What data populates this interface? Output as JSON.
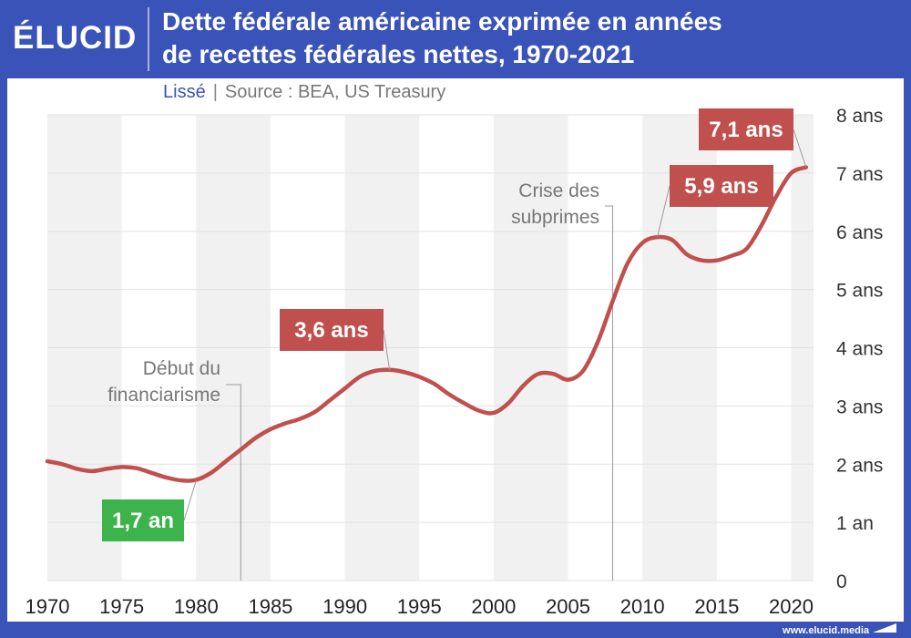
{
  "brand": {
    "logo": "ÉLUCID",
    "url": "www.elucid.media"
  },
  "header": {
    "title_line1": "Dette fédérale américaine exprimée en années",
    "title_line2": "de recettes fédérales nettes, 1970-2021"
  },
  "subtitle": {
    "smoothing": "Lissé",
    "separator": "|",
    "source": "Source : BEA, US Treasury"
  },
  "chart_data": {
    "type": "line",
    "title": "Dette fédérale américaine exprimée en années de recettes fédérales nettes, 1970-2021",
    "x_ticks": [
      "1970",
      "1975",
      "1980",
      "1985",
      "1990",
      "1995",
      "2000",
      "2005",
      "2010",
      "2015",
      "2020"
    ],
    "y_ticks": [
      "0",
      "1 an",
      "2 ans",
      "3 ans",
      "4 ans",
      "5 ans",
      "6 ans",
      "7 ans",
      "8 ans"
    ],
    "xlim": [
      1970,
      2021.5
    ],
    "ylim": [
      0,
      8
    ],
    "y_axis_position": "right",
    "line_color": "#c0504d",
    "series": [
      {
        "x": [
          1970,
          1971,
          1972,
          1973,
          1974,
          1975,
          1976,
          1977,
          1978,
          1979,
          1980,
          1981,
          1982,
          1983,
          1984,
          1985,
          1986,
          1987,
          1988,
          1989,
          1990,
          1991,
          1992,
          1993,
          1994,
          1995,
          1996,
          1997,
          1998,
          1999,
          2000,
          2001,
          2002,
          2003,
          2004,
          2005,
          2006,
          2007,
          2008,
          2009,
          2010,
          2011,
          2012,
          2013,
          2014,
          2015,
          2016,
          2017,
          2018,
          2019,
          2020,
          2021
        ],
        "values": [
          2.05,
          2.0,
          1.92,
          1.88,
          1.92,
          1.95,
          1.93,
          1.85,
          1.77,
          1.72,
          1.73,
          1.85,
          2.05,
          2.25,
          2.45,
          2.6,
          2.7,
          2.78,
          2.9,
          3.1,
          3.3,
          3.5,
          3.6,
          3.62,
          3.58,
          3.5,
          3.38,
          3.2,
          3.05,
          2.92,
          2.88,
          3.05,
          3.35,
          3.55,
          3.55,
          3.45,
          3.6,
          4.1,
          4.8,
          5.45,
          5.8,
          5.9,
          5.85,
          5.6,
          5.5,
          5.5,
          5.58,
          5.7,
          6.1,
          6.6,
          7.0,
          7.1
        ]
      }
    ],
    "shaded_bands": [
      [
        1970,
        1975
      ],
      [
        1980,
        1985
      ],
      [
        1990,
        1995
      ],
      [
        2000,
        2005
      ],
      [
        2010,
        2015
      ],
      [
        2020,
        2021.5
      ]
    ],
    "value_labels": [
      {
        "text": "1,7 an",
        "x": 1980,
        "y": 1.72,
        "color": "#3cb44b"
      },
      {
        "text": "3,6 ans",
        "x": 1993,
        "y": 3.62,
        "color": "#c0504d"
      },
      {
        "text": "5,9 ans",
        "x": 2011,
        "y": 5.9,
        "color": "#c0504d"
      },
      {
        "text": "7,1 ans",
        "x": 2021,
        "y": 7.1,
        "color": "#c0504d"
      }
    ],
    "annotations": [
      {
        "text_lines": [
          "Début du",
          "financiarisme"
        ],
        "x": 1983
      },
      {
        "text_lines": [
          "Crise des",
          "subprimes"
        ],
        "x": 2008
      }
    ],
    "grid": true
  }
}
